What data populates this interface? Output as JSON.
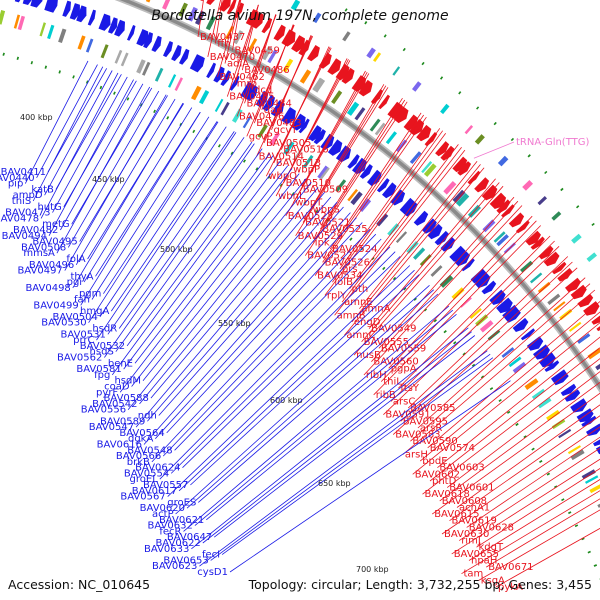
{
  "title": "Bordetella avium 197N, complete genome",
  "accession_text": "Accession: NC_010645",
  "topology_text": "Topology: circular; Length: 3,732,255 bp; Genes: 3,455",
  "colors": {
    "forward": "#e8141e",
    "reverse": "#1a1ae6",
    "trna": "#f07ad0",
    "backbone": "#8a8a8a",
    "tick": "#1e8a1e"
  },
  "kbp_labels": [
    "400 kbp",
    "450 kbp",
    "500 kbp",
    "550 kbp",
    "600 kbp",
    "650 kbp",
    "700 kbp"
  ],
  "genes_forward": [
    "BAV0437",
    "ffh",
    "BAV0459",
    "BAV0470",
    "adiA",
    "BAV0486",
    "BAV0462",
    "mrp",
    "dcd",
    "BAV0485",
    "BAV0484",
    "dad",
    "BAV0476",
    "BAV0483",
    "gcvT",
    "gcvP",
    "BAV0505",
    "BAV0516",
    "BAV0514",
    "BAV0513",
    "wbpP",
    "wbpO",
    "BAV0510",
    "BAV0509",
    "wbnL",
    "wbpT",
    "wbpS",
    "BAV0523",
    "BAV0521",
    "BAV0525",
    "BAV0529",
    "ipk",
    "BAV0524",
    "BAV0522",
    "BAV0526",
    "prs",
    "BAV0534",
    "lolB",
    "pth",
    "rplY",
    "amnE",
    "amnA",
    "amnB",
    "engD",
    "BAV0549",
    "amnC",
    "BAV0555",
    "BAV0559",
    "nusB",
    "BAV0560",
    "pgpA",
    "ribH",
    "thiL",
    "ftsY",
    "ribB",
    "arsC",
    "BAV0585",
    "BAV0591",
    "BAV0595",
    "arsR",
    "BAV0583",
    "BAV0590",
    "BAV0574",
    "arsH",
    "bpdE",
    "BAV0603",
    "BAV0602",
    "phtD",
    "BAV0601",
    "BAV0618",
    "BAV0608",
    "acnA1",
    "BAV0615",
    "BAV0619",
    "BAV0628",
    "BAV0630",
    "rimJ",
    "kdgT",
    "BAV0655",
    "hpaH",
    "BAV0671",
    "tam",
    "ksgA",
    "pykA"
  ],
  "genes_trna": [
    "tRNA-Gln(TTG)"
  ],
  "genes_reverse": [
    "BAV0411",
    "BAV0440",
    "pip",
    "katB",
    "ampD",
    "thiS",
    "hutG",
    "BAV0473",
    "BAV0478",
    "metG",
    "BAV0482",
    "BAV0494",
    "BAV0495",
    "BAV0508",
    "mmsA",
    "folA",
    "BAV0496",
    "BAV0497",
    "thyA",
    "pgi",
    "BAV0498",
    "pgm",
    "fah",
    "BAV0499",
    "hmgA",
    "BAV0504",
    "BAV0530",
    "hsdR",
    "BAV0531",
    "prrC",
    "BAV0532",
    "hsdS",
    "BAV0562",
    "benE",
    "BAV0581",
    "fpg",
    "hsdM",
    "coaD",
    "pyrF",
    "BAV0588",
    "BAV0542",
    "BAV0556",
    "ndh",
    "BAV0589",
    "BAV0547",
    "BAV0564",
    "dgkA",
    "BAV0616",
    "BAV0548",
    "BAV0566",
    "brkB",
    "BAV0624",
    "BAV0554",
    "groEL",
    "BAV0557",
    "BAV0617",
    "BAV0567",
    "groES",
    "BAV0620",
    "actP",
    "BAV0621",
    "BAV0632",
    "fecR",
    "BAV0647",
    "BAV0622",
    "BAV0633",
    "fecI",
    "BAV0653",
    "BAV0623",
    "cysD1"
  ]
}
